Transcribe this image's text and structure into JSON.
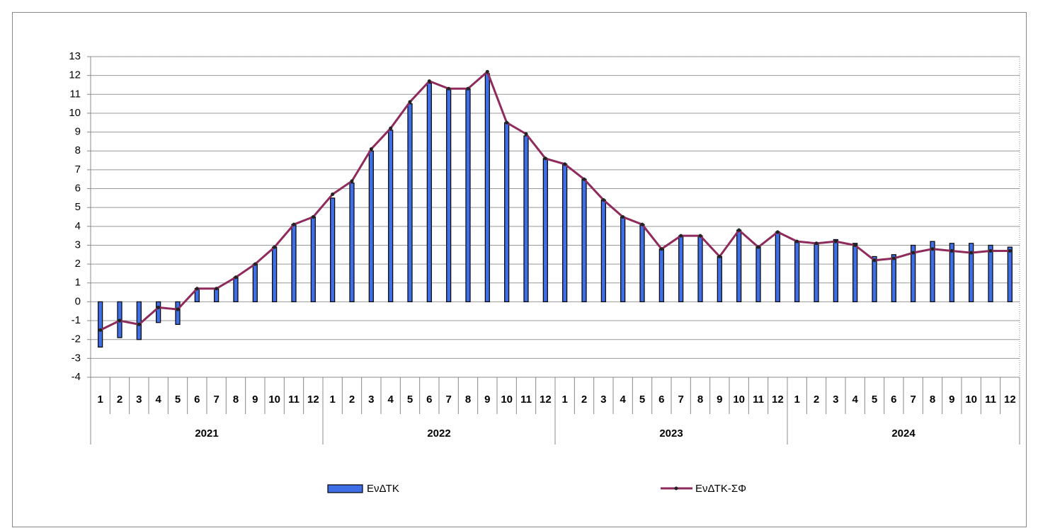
{
  "chart_data": {
    "type": "bar-line",
    "categories": [
      "1",
      "2",
      "3",
      "4",
      "5",
      "6",
      "7",
      "8",
      "9",
      "10",
      "11",
      "12",
      "1",
      "2",
      "3",
      "4",
      "5",
      "6",
      "7",
      "8",
      "9",
      "10",
      "11",
      "12",
      "1",
      "2",
      "3",
      "4",
      "5",
      "6",
      "7",
      "8",
      "9",
      "10",
      "11",
      "12",
      "1",
      "2",
      "3",
      "4",
      "5",
      "6",
      "7",
      "8",
      "9",
      "10",
      "11",
      "12"
    ],
    "groups": [
      "2021",
      "2022",
      "2023",
      "2024"
    ],
    "series": [
      {
        "name": "ΕνΔΤΚ",
        "type": "bar",
        "color": "#3f6fe6",
        "values": [
          -2.4,
          -1.9,
          -2.0,
          -1.1,
          -1.2,
          0.7,
          0.7,
          1.3,
          2.0,
          2.9,
          4.1,
          4.5,
          5.5,
          6.3,
          8.0,
          9.1,
          10.5,
          11.6,
          11.3,
          11.3,
          12.1,
          9.5,
          8.8,
          7.6,
          7.3,
          6.5,
          5.4,
          4.5,
          4.1,
          2.8,
          3.5,
          3.5,
          2.4,
          3.8,
          2.9,
          3.7,
          3.2,
          3.1,
          3.3,
          3.1,
          2.4,
          2.5,
          3.0,
          3.2,
          3.1,
          3.1,
          3.0,
          2.9
        ]
      },
      {
        "name": "ΕνΔΤΚ-ΣΦ",
        "type": "line",
        "color": "#8e2a5c",
        "values": [
          -1.5,
          -1.0,
          -1.2,
          -0.3,
          -0.4,
          0.7,
          0.7,
          1.3,
          2.0,
          2.9,
          4.1,
          4.5,
          5.7,
          6.4,
          8.1,
          9.2,
          10.6,
          11.7,
          11.3,
          11.3,
          12.2,
          9.5,
          8.9,
          7.6,
          7.3,
          6.5,
          5.4,
          4.5,
          4.1,
          2.8,
          3.5,
          3.5,
          2.4,
          3.8,
          2.9,
          3.7,
          3.2,
          3.1,
          3.2,
          3.0,
          2.2,
          2.3,
          2.6,
          2.8,
          2.7,
          2.6,
          2.7,
          2.7
        ]
      }
    ],
    "ylim": [
      -4,
      13
    ],
    "yticks": [
      -4,
      -3,
      -2,
      -1,
      0,
      1,
      2,
      3,
      4,
      5,
      6,
      7,
      8,
      9,
      10,
      11,
      12,
      13
    ],
    "grid": true,
    "legend": "bottom"
  }
}
